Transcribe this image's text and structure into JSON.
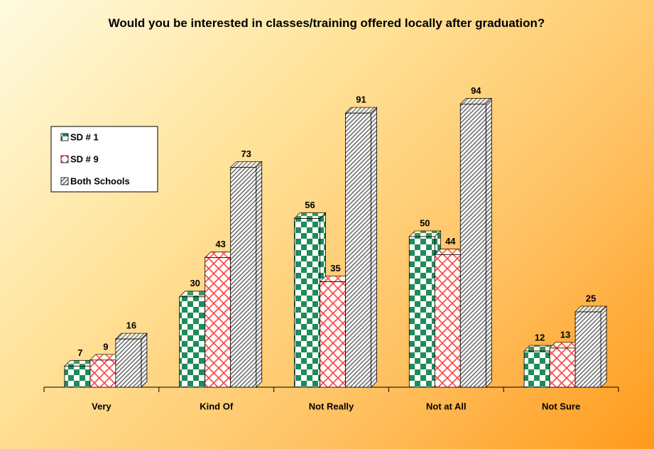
{
  "chart_data": {
    "type": "bar",
    "title": "Would you be interested in classes/training offered locally after graduation?",
    "categories": [
      "Very",
      "Kind Of",
      "Not Really",
      "Not at All",
      "Not Sure"
    ],
    "series": [
      {
        "name": "SD # 1",
        "color": "#1e8c5a",
        "values": [
          7,
          30,
          56,
          50,
          12
        ]
      },
      {
        "name": "SD # 9",
        "color": "#ff4040",
        "values": [
          9,
          43,
          35,
          44,
          13
        ]
      },
      {
        "name": "Both Schools",
        "color": "#707070",
        "values": [
          16,
          73,
          91,
          94,
          25
        ]
      }
    ],
    "legend": "left"
  }
}
